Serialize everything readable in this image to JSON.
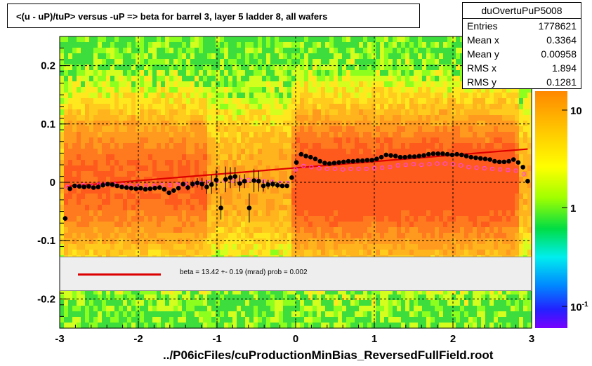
{
  "chart_data": {
    "type": "scatter",
    "title": "<(u - uP)/tuP>  versus  -uP => beta for barrel 3, layer 5 ladder 8, all wafers",
    "xlabel": "../P06icFiles/cuProductionMinBias_ReversedFullField.root",
    "ylabel": "",
    "xlim": [
      -3,
      3
    ],
    "ylim": [
      -0.25,
      0.25
    ],
    "x_ticks": [
      "-3",
      "-2",
      "-1",
      "0",
      "1",
      "2",
      "3"
    ],
    "y_ticks": [
      "-0.2",
      "-0.1",
      "0",
      "0.1",
      "0.2"
    ],
    "colorbar_ticks": [
      "10",
      "1",
      "10-1"
    ],
    "grid": true,
    "stats": {
      "name": "duOvertuPuP5008",
      "rows": [
        {
          "label": "Entries",
          "value": "1778621"
        },
        {
          "label": "Mean x",
          "value": "0.3364"
        },
        {
          "label": "Mean y",
          "value": "0.00958"
        },
        {
          "label": "RMS x",
          "value": "1.894"
        },
        {
          "label": "RMS y",
          "value": "0.1281"
        }
      ]
    },
    "legend": "beta =   13.42 +-  0.19 (mrad) prob = 0.002",
    "series": [
      {
        "name": "profile",
        "color": "#000000",
        "x": [
          -2.93,
          -2.87,
          -2.81,
          -2.75,
          -2.69,
          -2.63,
          -2.57,
          -2.51,
          -2.45,
          -2.39,
          -2.33,
          -2.27,
          -2.21,
          -2.15,
          -2.09,
          -2.03,
          -1.97,
          -1.91,
          -1.85,
          -1.79,
          -1.73,
          -1.67,
          -1.61,
          -1.55,
          -1.49,
          -1.43,
          -1.37,
          -1.31,
          -1.25,
          -1.19,
          -1.13,
          -1.07,
          -1.01,
          -0.95,
          -0.89,
          -0.83,
          -0.77,
          -0.71,
          -0.65,
          -0.59,
          -0.53,
          -0.47,
          -0.41,
          -0.35,
          -0.29,
          -0.23,
          -0.17,
          -0.11,
          -0.05,
          0.01,
          0.07,
          0.13,
          0.19,
          0.25,
          0.31,
          0.37,
          0.43,
          0.49,
          0.55,
          0.61,
          0.67,
          0.73,
          0.79,
          0.85,
          0.91,
          0.97,
          1.03,
          1.09,
          1.15,
          1.21,
          1.27,
          1.33,
          1.39,
          1.45,
          1.51,
          1.57,
          1.63,
          1.69,
          1.75,
          1.81,
          1.87,
          1.93,
          1.99,
          2.05,
          2.11,
          2.17,
          2.23,
          2.29,
          2.35,
          2.41,
          2.47,
          2.53,
          2.59,
          2.65,
          2.71,
          2.77,
          2.83,
          2.89,
          2.95
        ],
        "y": [
          -0.062,
          -0.011,
          -0.006,
          -0.007,
          -0.008,
          -0.007,
          -0.009,
          -0.008,
          -0.005,
          -0.003,
          -0.004,
          -0.006,
          -0.008,
          -0.009,
          -0.01,
          -0.011,
          -0.01,
          -0.012,
          -0.011,
          -0.01,
          -0.009,
          -0.012,
          -0.018,
          -0.014,
          -0.01,
          -0.003,
          -0.009,
          -0.003,
          -0.001,
          -0.003,
          -0.008,
          -0.004,
          0.004,
          -0.044,
          0.005,
          0.008,
          0.01,
          -0.002,
          0.002,
          -0.044,
          0.003,
          0.002,
          -0.006,
          -0.004,
          -0.003,
          -0.005,
          -0.006,
          -0.006,
          0.008,
          0.034,
          0.048,
          0.045,
          0.043,
          0.04,
          0.036,
          0.033,
          0.032,
          0.033,
          0.034,
          0.035,
          0.036,
          0.036,
          0.037,
          0.037,
          0.038,
          0.038,
          0.04,
          0.043,
          0.047,
          0.046,
          0.045,
          0.043,
          0.043,
          0.044,
          0.044,
          0.045,
          0.046,
          0.048,
          0.049,
          0.049,
          0.049,
          0.048,
          0.047,
          0.048,
          0.047,
          0.045,
          0.043,
          0.042,
          0.041,
          0.04,
          0.039,
          0.036,
          0.035,
          0.035,
          0.036,
          0.039,
          0.034,
          0.026,
          0.002
        ],
        "err": [
          0.004,
          0.002,
          0.002,
          0.002,
          0.002,
          0.002,
          0.002,
          0.002,
          0.002,
          0.002,
          0.002,
          0.002,
          0.002,
          0.002,
          0.002,
          0.002,
          0.002,
          0.002,
          0.002,
          0.002,
          0.002,
          0.002,
          0.003,
          0.003,
          0.003,
          0.004,
          0.005,
          0.006,
          0.008,
          0.01,
          0.012,
          0.016,
          0.018,
          0.02,
          0.022,
          0.018,
          0.016,
          0.014,
          0.012,
          0.025,
          0.02,
          0.018,
          0.01,
          0.008,
          0.006,
          0.005,
          0.004,
          0.003,
          0.003,
          0.003,
          0.003,
          0.003,
          0.002,
          0.002,
          0.002,
          0.002,
          0.002,
          0.002,
          0.002,
          0.002,
          0.002,
          0.002,
          0.002,
          0.002,
          0.002,
          0.002,
          0.002,
          0.002,
          0.002,
          0.002,
          0.002,
          0.002,
          0.002,
          0.002,
          0.002,
          0.002,
          0.002,
          0.002,
          0.002,
          0.002,
          0.002,
          0.002,
          0.002,
          0.002,
          0.002,
          0.002,
          0.002,
          0.002,
          0.002,
          0.002,
          0.002,
          0.002,
          0.002,
          0.002,
          0.002,
          0.002,
          0.002,
          0.003,
          0.004
        ]
      },
      {
        "name": "mean",
        "color": "#ff44ff",
        "x": [
          -2.9,
          -2.8,
          -2.7,
          -2.6,
          -2.5,
          -2.4,
          -2.3,
          -2.2,
          -2.1,
          -2.0,
          -1.9,
          -1.8,
          -1.7,
          -1.6,
          -1.5,
          -1.4,
          -1.3,
          -1.2,
          -1.1,
          -1.0,
          -0.9,
          -0.8,
          -0.7,
          -0.6,
          -0.5,
          -0.4,
          -0.3,
          -0.2,
          -0.1,
          0.0,
          0.1,
          0.2,
          0.3,
          0.4,
          0.5,
          0.6,
          0.7,
          0.8,
          0.9,
          1.0,
          1.1,
          1.2,
          1.3,
          1.4,
          1.5,
          1.6,
          1.7,
          1.8,
          1.9,
          2.0,
          2.1,
          2.2,
          2.3,
          2.4,
          2.5,
          2.6,
          2.7,
          2.8,
          2.9
        ],
        "y": [
          -0.008,
          -0.006,
          -0.005,
          -0.006,
          -0.004,
          -0.003,
          -0.004,
          -0.005,
          -0.006,
          -0.006,
          -0.006,
          -0.006,
          -0.005,
          -0.005,
          -0.004,
          -0.003,
          -0.003,
          -0.001,
          0.0,
          0.002,
          0.003,
          0.003,
          0.004,
          0.004,
          0.003,
          0.002,
          0.001,
          -0.001,
          -0.001,
          0.022,
          0.028,
          0.026,
          0.024,
          0.023,
          0.023,
          0.022,
          0.023,
          0.023,
          0.023,
          0.024,
          0.025,
          0.026,
          0.029,
          0.03,
          0.031,
          0.03,
          0.031,
          0.032,
          0.032,
          0.031,
          0.029,
          0.026,
          0.025,
          0.024,
          0.023,
          0.022,
          0.021,
          0.02,
          0.014
        ]
      }
    ],
    "fit": {
      "color": "#dd0000",
      "x": [
        -2.9,
        2.95
      ],
      "y": [
        -0.007,
        0.057
      ]
    }
  }
}
